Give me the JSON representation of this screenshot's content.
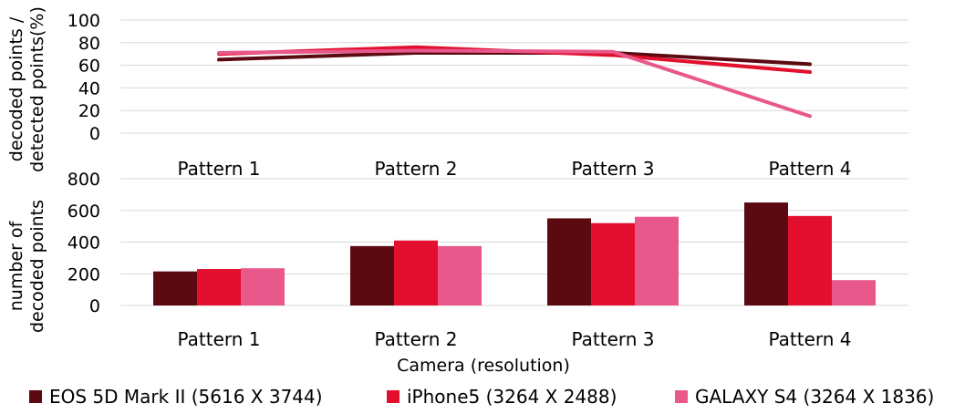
{
  "chart_data": [
    {
      "type": "line",
      "categories": [
        "Pattern 1",
        "Pattern 2",
        "Pattern 3",
        "Pattern 4"
      ],
      "ylabel_lines": [
        "decoded points /",
        "detected points(%)"
      ],
      "yticks": [
        0,
        20,
        40,
        60,
        80,
        100
      ],
      "ylim": [
        0,
        100
      ],
      "grid": true,
      "series": [
        {
          "name": "EOS 5D Mark II (5616 X 3744)",
          "color": "#5a0a10",
          "values": [
            65,
            71,
            71,
            61
          ]
        },
        {
          "name": "iPhone5 (3264 X 2488)",
          "color": "#e2102e",
          "values": [
            70,
            76,
            69,
            54
          ]
        },
        {
          "name": "GALAXY S4 (3264 X 1836)",
          "color": "#e8588a",
          "values": [
            71,
            73,
            72,
            15
          ]
        }
      ]
    },
    {
      "type": "bar",
      "categories": [
        "Pattern 1",
        "Pattern 2",
        "Pattern 3",
        "Pattern 4"
      ],
      "ylabel_lines": [
        "number of",
        "decoded points"
      ],
      "xlabel": "Camera (resolution)",
      "yticks": [
        0,
        200,
        400,
        600,
        800
      ],
      "ylim": [
        0,
        800
      ],
      "grid": true,
      "series": [
        {
          "name": "EOS 5D Mark II (5616 X 3744)",
          "color": "#5a0a10",
          "values": [
            215,
            375,
            550,
            650
          ]
        },
        {
          "name": "iPhone5 (3264 X 2488)",
          "color": "#e2102e",
          "values": [
            230,
            410,
            520,
            565
          ]
        },
        {
          "name": "GALAXY S4 (3264 X 1836)",
          "color": "#e8588a",
          "values": [
            235,
            375,
            560,
            160
          ]
        }
      ]
    }
  ],
  "legend": {
    "position": "bottom",
    "items": [
      {
        "label": "EOS 5D Mark II (5616 X 3744)",
        "color": "#5a0a10"
      },
      {
        "label": "iPhone5 (3264 X 2488)",
        "color": "#e2102e"
      },
      {
        "label": "GALAXY S4 (3264 X 1836)",
        "color": "#e8588a"
      }
    ]
  }
}
